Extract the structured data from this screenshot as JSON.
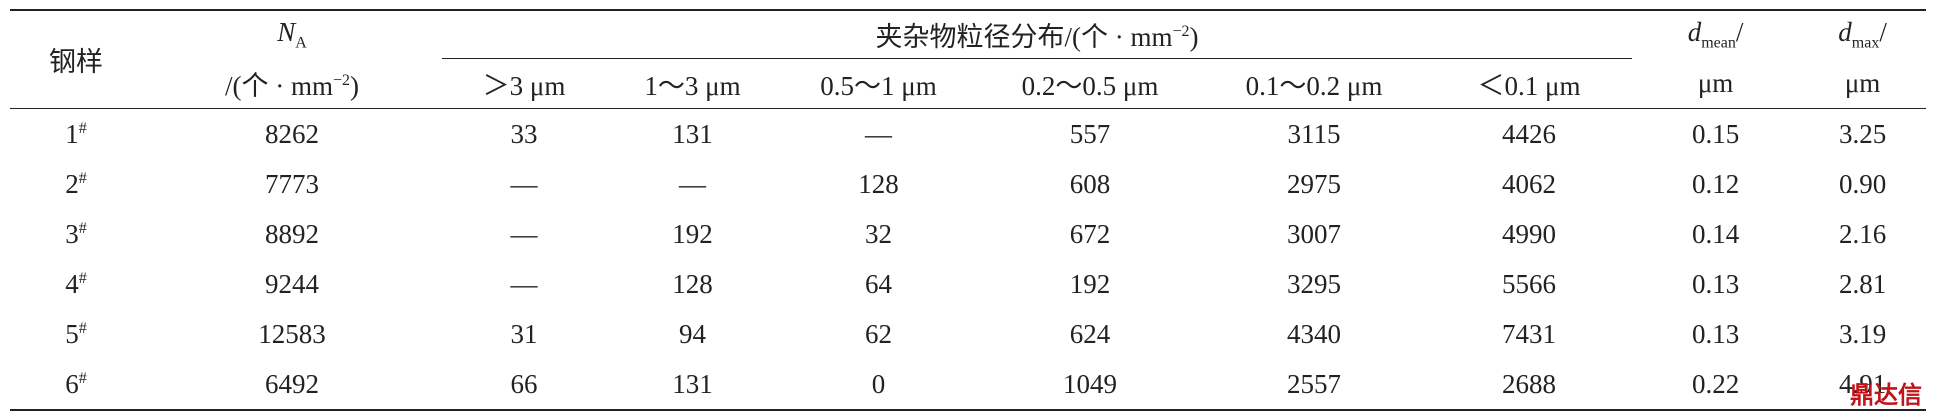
{
  "table": {
    "headers": {
      "sample": "钢样",
      "na": {
        "symbol": "N",
        "sub": "A",
        "unit_pre": "/(个 · mm",
        "unit_sup": "−2",
        "unit_post": ")"
      },
      "distribution": {
        "text": "夹杂物粒径分布/(个 · mm",
        "sup": "−2",
        "post": ")"
      },
      "size_ranges": [
        "＞3 μm",
        "1～3 μm",
        "0.5～1 μm",
        "0.2～0.5 μm",
        "0.1～0.2 μm",
        "＜0.1 μm"
      ],
      "dmean": {
        "symbol": "d",
        "sub": "mean",
        "post": "/",
        "unit": "μm"
      },
      "dmax": {
        "symbol": "d",
        "sub": "max",
        "post": "/",
        "unit": "μm"
      }
    },
    "rows": [
      {
        "id": "1",
        "mark": "#",
        "cells": [
          "8262",
          "33",
          "131",
          "—",
          "557",
          "3115",
          "4426",
          "0.15",
          "3.25"
        ]
      },
      {
        "id": "2",
        "mark": "#",
        "cells": [
          "7773",
          "—",
          "—",
          "128",
          "608",
          "2975",
          "4062",
          "0.12",
          "0.90"
        ]
      },
      {
        "id": "3",
        "mark": "#",
        "cells": [
          "8892",
          "—",
          "192",
          "32",
          "672",
          "3007",
          "4990",
          "0.14",
          "2.16"
        ]
      },
      {
        "id": "4",
        "mark": "#",
        "cells": [
          "9244",
          "—",
          "128",
          "64",
          "192",
          "3295",
          "5566",
          "0.13",
          "2.81"
        ]
      },
      {
        "id": "5",
        "mark": "#",
        "cells": [
          "12583",
          "31",
          "94",
          "62",
          "624",
          "4340",
          "7431",
          "0.13",
          "3.19"
        ]
      },
      {
        "id": "6",
        "mark": "#",
        "cells": [
          "6492",
          "66",
          "131",
          "0",
          "1049",
          "2557",
          "2688",
          "0.22",
          "4.91"
        ]
      }
    ]
  },
  "watermark": "鼎达信"
}
